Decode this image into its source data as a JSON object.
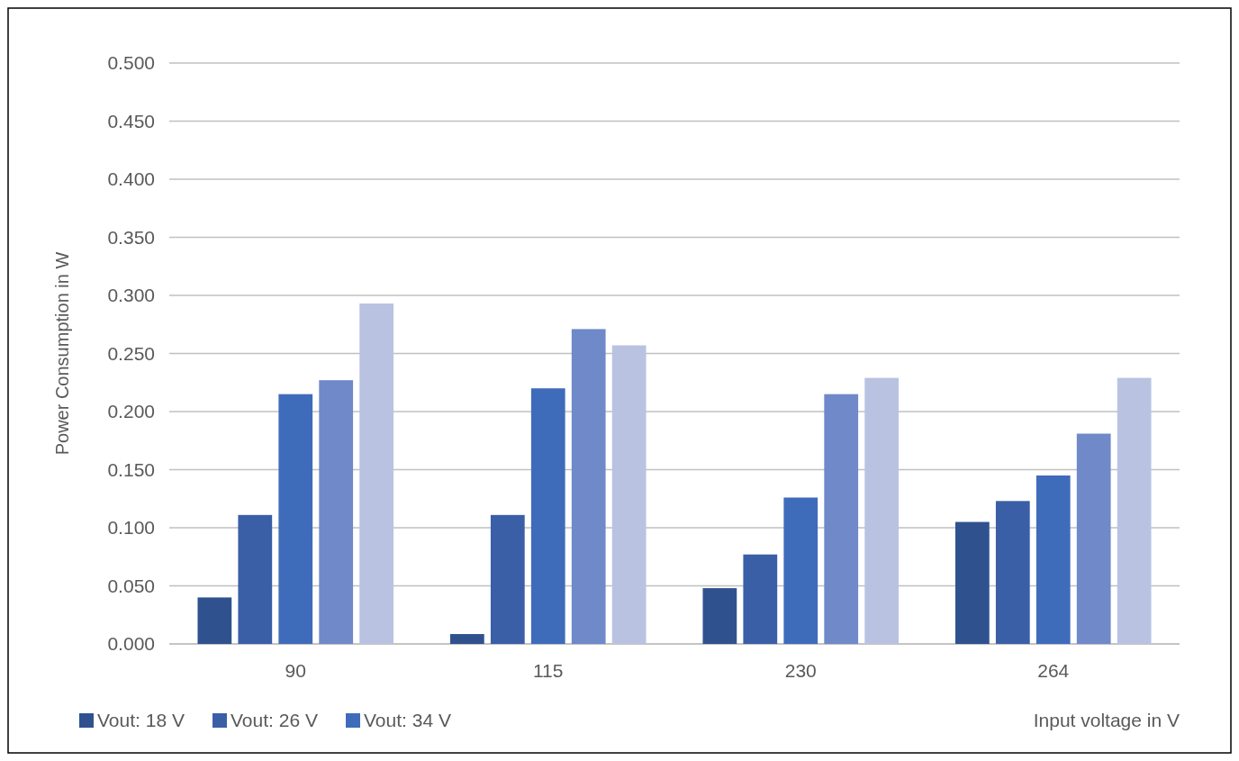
{
  "chart_data": {
    "type": "bar",
    "ylabel": "Power Consumption in W",
    "xlabel": "Input voltage in V",
    "categories": [
      "90",
      "115",
      "230",
      "264"
    ],
    "series": [
      {
        "name": "Vout: 18 V",
        "color": "#2f528f",
        "values": [
          0.04,
          0.0085,
          0.048,
          0.105
        ]
      },
      {
        "name": "Vout: 26 V",
        "color": "#3a5fa7",
        "values": [
          0.111,
          0.111,
          0.077,
          0.123
        ]
      },
      {
        "name": "Vout: 34 V",
        "color": "#3f6cba",
        "values": [
          0.215,
          0.22,
          0.126,
          0.145
        ]
      },
      {
        "color": "#6f89c9",
        "values": [
          0.227,
          0.271,
          0.215,
          0.181
        ]
      },
      {
        "color": "#b9c3e1",
        "values": [
          0.293,
          0.257,
          0.229,
          0.229
        ]
      }
    ],
    "ylim": [
      0,
      0.5
    ],
    "yticks": [
      {
        "value": 0,
        "label": "0.000"
      },
      {
        "value": 0.05,
        "label": "0.050"
      },
      {
        "value": 0.1,
        "label": "0.100"
      },
      {
        "value": 0.15,
        "label": "0.150"
      },
      {
        "value": 0.2,
        "label": "0.200"
      },
      {
        "value": 0.25,
        "label": "0.250"
      },
      {
        "value": 0.3,
        "label": "0.300"
      },
      {
        "value": 0.35,
        "label": "0.350"
      },
      {
        "value": 0.4,
        "label": "0.400"
      },
      {
        "value": 0.45,
        "label": "0.450"
      },
      {
        "value": 0.5,
        "label": "0.500"
      }
    ],
    "grid": "y",
    "legend": "bottom"
  }
}
